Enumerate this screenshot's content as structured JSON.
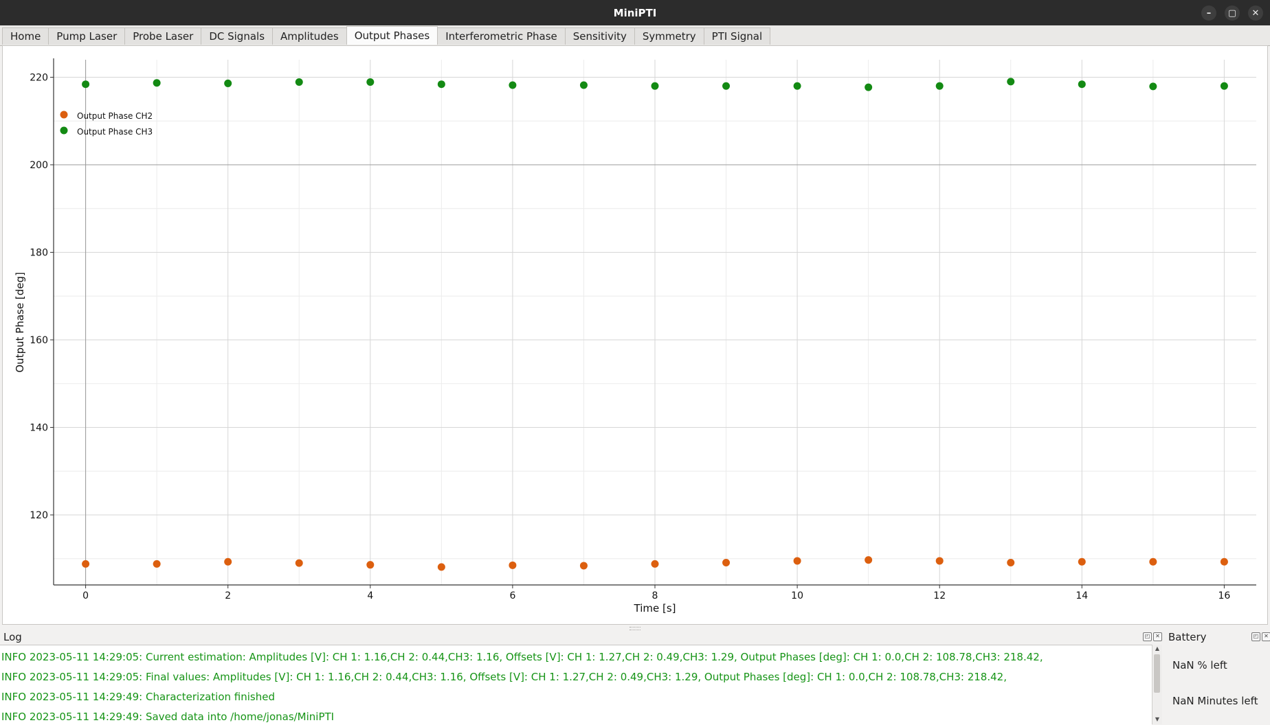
{
  "window": {
    "title": "MiniPTI",
    "buttons": [
      "–",
      "▢",
      "✕"
    ]
  },
  "tabs": [
    {
      "label": "Home",
      "active": false
    },
    {
      "label": "Pump Laser",
      "active": false
    },
    {
      "label": "Probe Laser",
      "active": false
    },
    {
      "label": "DC Signals",
      "active": false
    },
    {
      "label": "Amplitudes",
      "active": false
    },
    {
      "label": "Output Phases",
      "active": true
    },
    {
      "label": "Interferometric Phase",
      "active": false
    },
    {
      "label": "Sensitivity",
      "active": false
    },
    {
      "label": "Symmetry",
      "active": false
    },
    {
      "label": "PTI Signal",
      "active": false
    }
  ],
  "chart_data": {
    "type": "scatter",
    "xlabel": "Time [s]",
    "ylabel": "Output Phase [deg]",
    "xlim": [
      -0.45,
      16.45
    ],
    "ylim": [
      104,
      224
    ],
    "xticks": [
      0,
      2,
      4,
      6,
      8,
      10,
      12,
      14,
      16
    ],
    "yticks": [
      120,
      140,
      160,
      180,
      200,
      220
    ],
    "grid": true,
    "legend_position": "top-left",
    "x": [
      0,
      1,
      2,
      3,
      4,
      5,
      6,
      7,
      8,
      9,
      10,
      11,
      12,
      13,
      14,
      15,
      16
    ],
    "series": [
      {
        "name": "Output Phase CH2",
        "color": "#dc5f0f",
        "values": [
          108.8,
          108.8,
          109.3,
          109.0,
          108.6,
          108.1,
          108.5,
          108.4,
          108.8,
          109.1,
          109.5,
          109.7,
          109.5,
          109.1,
          109.3,
          109.3,
          109.3
        ]
      },
      {
        "name": "Output Phase CH3",
        "color": "#138a13",
        "values": [
          218.4,
          218.7,
          218.6,
          218.9,
          218.9,
          218.4,
          218.2,
          218.2,
          218.0,
          218.0,
          218.0,
          217.7,
          218.0,
          219.0,
          218.4,
          217.9,
          218.0
        ]
      }
    ]
  },
  "log": {
    "title": "Log",
    "lines": [
      "INFO 2023-05-11 14:29:05: Current estimation: Amplitudes [V]: CH 1: 1.16,CH 2: 0.44,CH3: 1.16, Offsets [V]: CH 1: 1.27,CH 2: 0.49,CH3: 1.29, Output Phases [deg]: CH 1: 0.0,CH 2: 108.78,CH3: 218.42,",
      "INFO 2023-05-11 14:29:05: Final values: Amplitudes [V]: CH 1: 1.16,CH 2: 0.44,CH3: 1.16, Offsets [V]: CH 1: 1.27,CH 2: 0.49,CH3: 1.29, Output Phases [deg]: CH 1: 0.0,CH 2: 108.78,CH3: 218.42,",
      "INFO 2023-05-11 14:29:49: Characterization finished",
      "INFO 2023-05-11 14:29:49: Saved data into /home/jonas/MiniPTI"
    ]
  },
  "battery": {
    "title": "Battery",
    "percent_text": "NaN % left",
    "minutes_text": "NaN Minutes left"
  }
}
